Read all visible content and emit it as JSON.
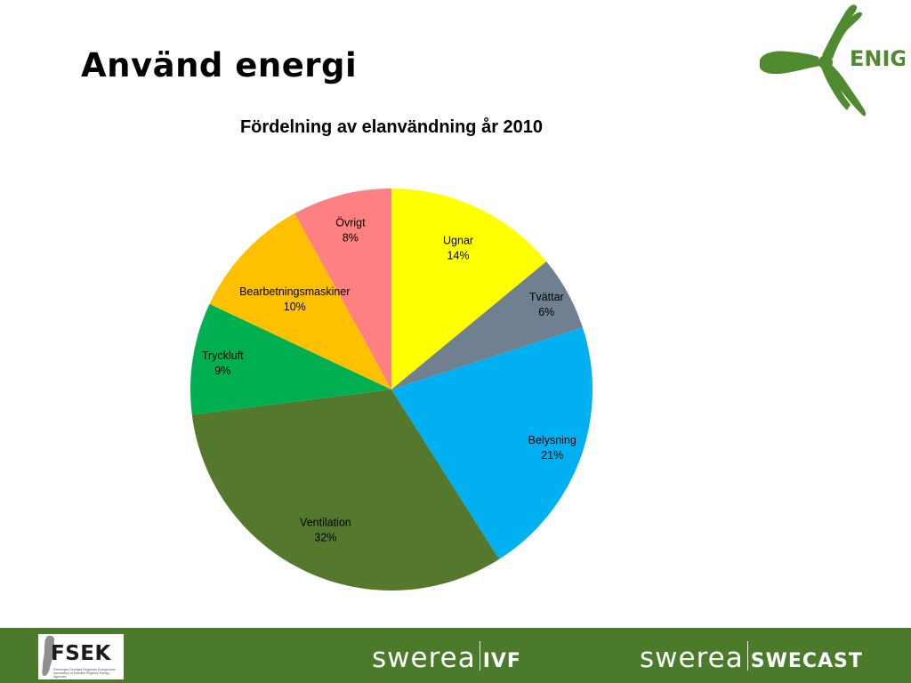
{
  "slide": {
    "title": "Använd energi"
  },
  "colors": {
    "footer": "#4a7a2a",
    "logo_green": "#4f8a2f",
    "slices": [
      "#ffff00",
      "#708090",
      "#00b0f0",
      "#54782c",
      "#00b050",
      "#ffc000",
      "#ff8080"
    ]
  },
  "logos": {
    "enig": "ENIG",
    "fsek": "FSEK",
    "fsek_subtitle": "Föreningen Sveriges Regionala Energikontor Association of Swedish Regional Energy Agencies",
    "swerea_ivf": {
      "name": "swerea",
      "unit": "IVF"
    },
    "swerea_swecast": {
      "name": "swerea",
      "unit": "SWECAST"
    }
  },
  "chart_data": {
    "type": "pie",
    "title": "Fördelning av elanvändning år 2010",
    "slices": [
      {
        "label": "Ugnar",
        "value": 14,
        "value_label": "14%"
      },
      {
        "label": "Tvättar",
        "value": 6,
        "value_label": "6%"
      },
      {
        "label": "Belysning",
        "value": 21,
        "value_label": "21%"
      },
      {
        "label": "Ventilation",
        "value": 32,
        "value_label": "32%"
      },
      {
        "label": "Tryckluft",
        "value": 9,
        "value_label": "9%"
      },
      {
        "label": "Bearbetningsmaskiner",
        "value": 10,
        "value_label": "10%"
      },
      {
        "label": "Övrigt",
        "value": 8,
        "value_label": "8%"
      }
    ],
    "start": "12 o'clock",
    "direction": "clockwise",
    "legend": "none",
    "labels": "inside"
  }
}
